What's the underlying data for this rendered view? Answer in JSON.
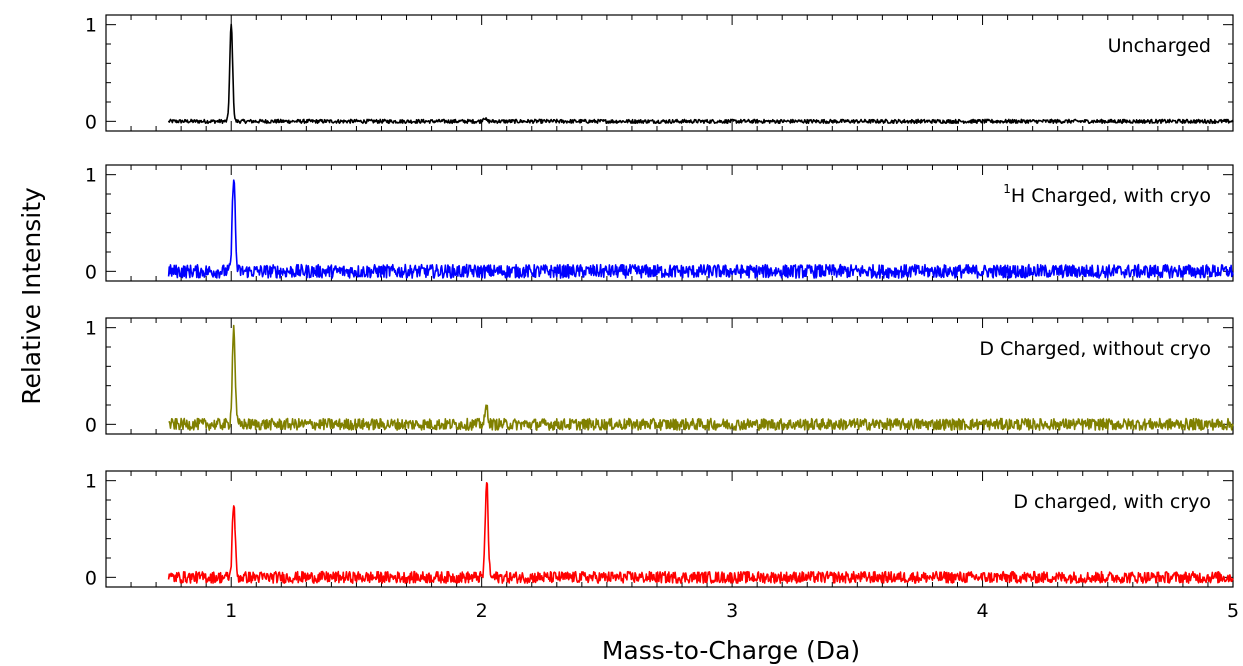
{
  "chart_data": {
    "type": "line",
    "xlabel": "Mass-to-Charge (Da)",
    "ylabel": "Relative Intensity",
    "xlim": [
      0.5,
      5
    ],
    "x_ticks": [
      "1",
      "2",
      "3",
      "4",
      "5"
    ],
    "grid": false,
    "panels": [
      {
        "label": "Uncharged",
        "superscript": "",
        "color": "#000000",
        "ylim": [
          -0.1,
          1.1
        ],
        "y_ticks": [
          "0",
          "1"
        ],
        "x_start": 0.75,
        "noise": 0.02,
        "peaks": [
          {
            "x": 1.0,
            "y": 1.0
          },
          {
            "x": 2.01,
            "y": 0.04
          }
        ]
      },
      {
        "label": "H Charged, with cryo",
        "superscript": "1",
        "color": "#0000ff",
        "ylim": [
          -0.1,
          1.1
        ],
        "y_ticks": [
          "0",
          "1"
        ],
        "x_start": 0.75,
        "noise": 0.07,
        "peaks": [
          {
            "x": 1.01,
            "y": 1.0
          }
        ]
      },
      {
        "label": "D Charged, without cryo",
        "superscript": "",
        "color": "#808000",
        "ylim": [
          -0.1,
          1.1
        ],
        "y_ticks": [
          "0",
          "1"
        ],
        "x_start": 0.75,
        "noise": 0.06,
        "peaks": [
          {
            "x": 1.01,
            "y": 1.0
          },
          {
            "x": 2.02,
            "y": 0.18
          }
        ]
      },
      {
        "label": "D charged, with cryo",
        "superscript": "",
        "color": "#ff0000",
        "ylim": [
          -0.1,
          1.1
        ],
        "y_ticks": [
          "0",
          "1"
        ],
        "x_start": 0.75,
        "noise": 0.06,
        "peaks": [
          {
            "x": 1.01,
            "y": 0.78
          },
          {
            "x": 2.02,
            "y": 1.0
          }
        ]
      }
    ]
  }
}
